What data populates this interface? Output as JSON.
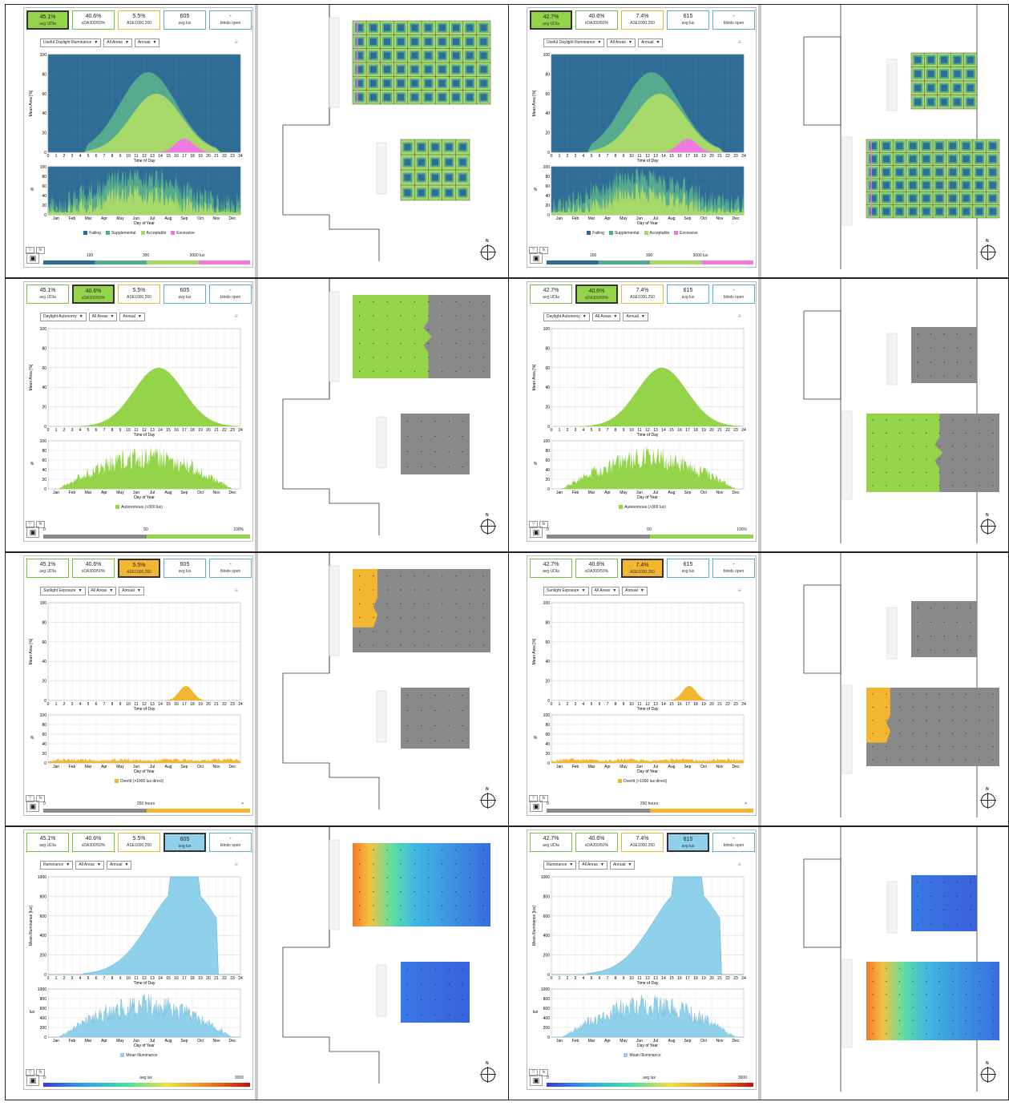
{
  "colors": {
    "failing": "#2f6d96",
    "supplemental": "#56ab8e",
    "acceptable": "#a8d86a",
    "excessive": "#f07ae0",
    "autonomous": "#93d44a",
    "overlit": "#f3b630",
    "illuminance": "#8fd0ea",
    "grey": "#8a8a8a"
  },
  "axis": {
    "hours": [
      "0",
      "1",
      "2",
      "3",
      "4",
      "5",
      "6",
      "7",
      "8",
      "9",
      "10",
      "11",
      "12",
      "13",
      "14",
      "15",
      "16",
      "17",
      "18",
      "19",
      "20",
      "21",
      "22",
      "23",
      "24"
    ],
    "months": [
      "Jan",
      "Feb",
      "Mar",
      "Apr",
      "May",
      "Jun",
      "Jul",
      "Aug",
      "Sep",
      "Oct",
      "Nov",
      "Dec"
    ],
    "x_label_top": "Time of Day",
    "x_label_bottom": "Day of Year",
    "y_area": "Mean Area [%]",
    "y_lux": "Mean Illuminance [lux]",
    "y_pct": "%",
    "y_lux_short": "lux",
    "y_ticks_pct": [
      "0",
      "20",
      "40",
      "60",
      "80",
      "100"
    ],
    "y_ticks_lux": [
      "0",
      "200",
      "400",
      "600",
      "800",
      "1000"
    ]
  },
  "filters": {
    "area": "All Areas",
    "period": "Annual"
  },
  "cells": [
    {
      "metrics": [
        {
          "value": "45.1%",
          "label": "avg UDIa"
        },
        {
          "value": "40.6%",
          "label": "sDA300/50%"
        },
        {
          "value": "5.5%",
          "label": "ASE1000,250"
        },
        {
          "value": "605",
          "label": "avg lux"
        },
        {
          "value": "-",
          "label": "blinds open"
        }
      ],
      "active": 0,
      "metric_select": "Useful Daylight Illuminance",
      "mode": "udi",
      "legend": [
        "Failing",
        "Supplemental",
        "Acceptable",
        "Excessive"
      ],
      "scale_labels": [
        "100",
        "300",
        "3000 lux"
      ],
      "layout": "A"
    },
    {
      "metrics": [
        {
          "value": "42.7%",
          "label": "avg UDIa"
        },
        {
          "value": "40.6%",
          "label": "sDA300/50%"
        },
        {
          "value": "7.4%",
          "label": "ASE1000,250"
        },
        {
          "value": "615",
          "label": "avg lux"
        },
        {
          "value": "-",
          "label": "blinds open"
        }
      ],
      "active": 0,
      "metric_select": "Useful Daylight Illuminance",
      "mode": "udi",
      "legend": [
        "Failing",
        "Supplemental",
        "Acceptable",
        "Excessive"
      ],
      "scale_labels": [
        "100",
        "300",
        "3000 lux"
      ],
      "layout": "B"
    },
    {
      "metrics": [
        {
          "value": "45.1%",
          "label": "avg UDIa"
        },
        {
          "value": "40.6%",
          "label": "sDA300/50%"
        },
        {
          "value": "5.5%",
          "label": "ASE1000,250"
        },
        {
          "value": "605",
          "label": "avg lux"
        },
        {
          "value": "-",
          "label": "blinds open"
        }
      ],
      "active": 1,
      "metric_select": "Daylight Autonomy",
      "mode": "da",
      "legend": [
        "Autonomous (>300 lux)"
      ],
      "scale_labels": [
        "0",
        "50",
        "100%"
      ],
      "layout": "A"
    },
    {
      "metrics": [
        {
          "value": "42.7%",
          "label": "avg UDIa"
        },
        {
          "value": "40.6%",
          "label": "sDA300/50%"
        },
        {
          "value": "7.4%",
          "label": "ASE1000,250"
        },
        {
          "value": "615",
          "label": "avg lux"
        },
        {
          "value": "-",
          "label": "blinds open"
        }
      ],
      "active": 1,
      "metric_select": "Daylight Autonomy",
      "mode": "da",
      "legend": [
        "Autonomous (>300 lux)"
      ],
      "scale_labels": [
        "0",
        "50",
        "100%"
      ],
      "layout": "B"
    },
    {
      "metrics": [
        {
          "value": "45.1%",
          "label": "avg UDIa"
        },
        {
          "value": "40.6%",
          "label": "sDA300/50%"
        },
        {
          "value": "5.5%",
          "label": "ASE1000,250"
        },
        {
          "value": "605",
          "label": "avg lux"
        },
        {
          "value": "-",
          "label": "blinds open"
        }
      ],
      "active": 2,
      "metric_select": "Sunlight Exposure",
      "mode": "ase",
      "legend": [
        "Overlit (>1000 lux direct)"
      ],
      "scale_labels": [
        "0",
        "250 hours",
        ">"
      ],
      "layout": "A"
    },
    {
      "metrics": [
        {
          "value": "42.7%",
          "label": "avg UDIa"
        },
        {
          "value": "40.6%",
          "label": "sDA300/50%"
        },
        {
          "value": "7.4%",
          "label": "ASE1000,250"
        },
        {
          "value": "615",
          "label": "avg lux"
        },
        {
          "value": "-",
          "label": "blinds open"
        }
      ],
      "active": 2,
      "metric_select": "Sunlight Exposure",
      "mode": "ase",
      "legend": [
        "Overlit (>1000 lux direct)"
      ],
      "scale_labels": [
        "0",
        "250 hours",
        ">"
      ],
      "layout": "B"
    },
    {
      "metrics": [
        {
          "value": "45.1%",
          "label": "avg UDIa"
        },
        {
          "value": "40.6%",
          "label": "sDA300/50%"
        },
        {
          "value": "5.5%",
          "label": "ASE1000,250"
        },
        {
          "value": "605",
          "label": "avg lux"
        },
        {
          "value": "-",
          "label": "blinds open"
        }
      ],
      "active": 3,
      "metric_select": "Illuminance",
      "mode": "lux",
      "legend": [
        "Mean Illuminance"
      ],
      "scale_labels": [
        "0",
        "avg lux",
        "3000"
      ],
      "layout": "A"
    },
    {
      "metrics": [
        {
          "value": "42.7%",
          "label": "avg UDIa"
        },
        {
          "value": "40.6%",
          "label": "sDA300/50%"
        },
        {
          "value": "7.4%",
          "label": "ASE1000,250"
        },
        {
          "value": "615",
          "label": "avg lux"
        },
        {
          "value": "-",
          "label": "blinds open"
        }
      ],
      "active": 3,
      "metric_select": "Illuminance",
      "mode": "lux",
      "legend": [
        "Mean Illuminance"
      ],
      "scale_labels": [
        "0",
        "avg lux",
        "3000"
      ],
      "layout": "B"
    }
  ],
  "compass_label": "N"
}
